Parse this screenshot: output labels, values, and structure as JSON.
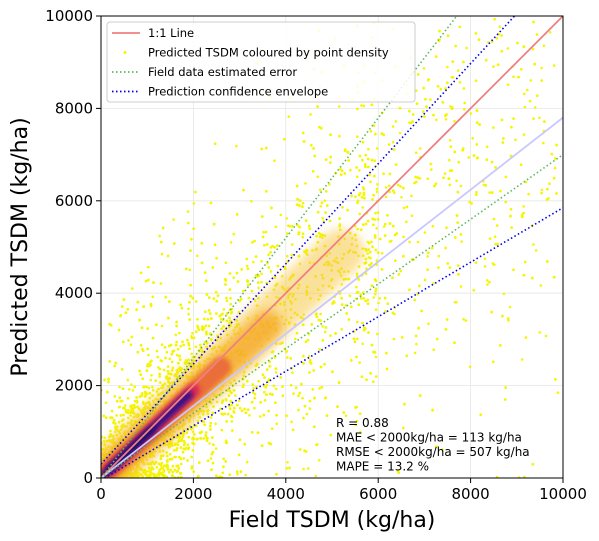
{
  "chart_data": {
    "type": "scatter",
    "xlabel": "Field TSDM (kg/ha)",
    "ylabel": "Predicted TSDM (kg/ha)",
    "xlim": [
      0,
      10000
    ],
    "ylim": [
      0,
      10000
    ],
    "xticks": [
      "0",
      "2000",
      "4000",
      "6000",
      "8000",
      "10000"
    ],
    "yticks": [
      "0",
      "2000",
      "4000",
      "6000",
      "8000",
      "10000"
    ],
    "grid": true,
    "legend_position": "top-left",
    "legend": [
      {
        "label": "1:1 Line",
        "style": "solid",
        "color": "#f08080"
      },
      {
        "label": "Predicted TSDM coloured by point density",
        "style": "marker",
        "color": "#f5f500"
      },
      {
        "label": "Field data estimated error",
        "style": "dotted",
        "color": "#5cb85c"
      },
      {
        "label": "Prediction confidence envelope",
        "style": "dotted",
        "color": "#0000ee"
      }
    ],
    "lines": [
      {
        "name": "1:1 Line",
        "x": [
          0,
          10000
        ],
        "y": [
          0,
          10000
        ],
        "color": "#f08080",
        "style": "solid"
      },
      {
        "name": "Regression fit",
        "x": [
          0,
          10000
        ],
        "y": [
          0,
          7800
        ],
        "color": "#c8c8ff",
        "style": "solid"
      },
      {
        "name": "Field error upper",
        "x": [
          0,
          7700
        ],
        "y": [
          0,
          10000
        ],
        "color": "#5cb85c",
        "style": "dotted"
      },
      {
        "name": "Field error lower",
        "x": [
          0,
          10000
        ],
        "y": [
          0,
          7000
        ],
        "color": "#5cb85c",
        "style": "dotted"
      },
      {
        "name": "Confidence upper",
        "x": [
          0,
          8950
        ],
        "y": [
          300,
          10000
        ],
        "color": "#0000ee",
        "style": "dotted"
      },
      {
        "name": "Confidence lower",
        "x": [
          0,
          10000
        ],
        "y": [
          -50,
          5850
        ],
        "color": "#0000ee",
        "style": "dotted"
      }
    ],
    "density_core": {
      "x": [
        0,
        2000
      ],
      "y": [
        0,
        1900
      ]
    },
    "stats": [
      "R = 0.88",
      "MAE < 2000kg/ha =  113 kg/ha",
      "RMSE < 2000kg/ha =  507 kg/ha",
      "MAPE = 13.2 %"
    ],
    "colors": {
      "scatter_low": "#f5f500",
      "scatter_mid": "#f5a623",
      "scatter_high": "#d6205a",
      "scatter_peak": "#2b0b8c"
    }
  }
}
